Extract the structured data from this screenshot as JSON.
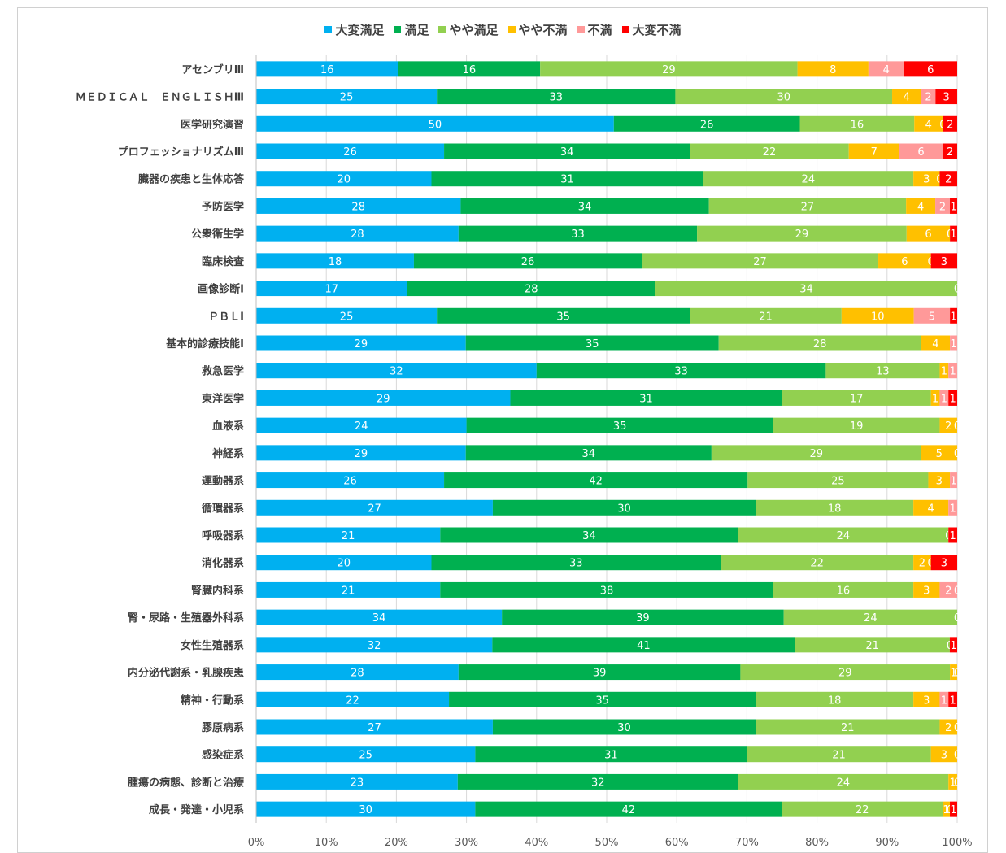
{
  "chart_data": {
    "type": "bar",
    "orientation": "horizontal",
    "stacked": "percent",
    "series_colors": [
      "#00b0f0",
      "#00b050",
      "#92d050",
      "#ffc000",
      "#ff9999",
      "#ff0000"
    ],
    "x_ticks": [
      "0%",
      "10%",
      "20%",
      "30%",
      "40%",
      "50%",
      "60%",
      "70%",
      "80%",
      "90%",
      "100%"
    ],
    "legend_position": "top",
    "grid": true,
    "series": [
      {
        "name": "大変満足",
        "values": [
          16,
          25,
          50,
          26,
          20,
          28,
          28,
          18,
          17,
          25,
          29,
          32,
          29,
          24,
          29,
          26,
          27,
          21,
          20,
          21,
          34,
          32,
          28,
          22,
          27,
          25,
          23,
          30
        ]
      },
      {
        "name": "満足",
        "values": [
          16,
          33,
          26,
          34,
          31,
          34,
          33,
          26,
          28,
          35,
          35,
          33,
          31,
          35,
          34,
          42,
          30,
          34,
          33,
          38,
          39,
          41,
          39,
          35,
          30,
          31,
          32,
          42
        ]
      },
      {
        "name": "やや満足",
        "values": [
          29,
          30,
          16,
          22,
          24,
          27,
          29,
          27,
          34,
          21,
          28,
          13,
          17,
          19,
          29,
          25,
          18,
          24,
          22,
          16,
          24,
          21,
          29,
          18,
          21,
          21,
          24,
          22
        ]
      },
      {
        "name": "やや不満",
        "values": [
          8,
          4,
          4,
          7,
          3,
          4,
          6,
          6,
          0,
          10,
          4,
          1,
          1,
          2,
          5,
          3,
          4,
          0,
          2,
          3,
          0,
          0,
          1,
          3,
          2,
          3,
          1,
          1
        ]
      },
      {
        "name": "不満",
        "values": [
          4,
          2,
          0,
          6,
          0,
          2,
          0,
          0,
          0,
          5,
          1,
          1,
          1,
          0,
          0,
          1,
          1,
          0,
          0,
          2,
          0,
          0,
          0,
          1,
          0,
          0,
          0,
          0
        ]
      },
      {
        "name": "大変不満",
        "values": [
          6,
          3,
          2,
          2,
          2,
          1,
          1,
          3,
          0,
          1,
          0,
          0,
          1,
          0,
          0,
          0,
          0,
          1,
          3,
          0,
          0,
          1,
          0,
          1,
          0,
          0,
          0,
          1
        ]
      }
    ],
    "categories": [
      "アセンブリⅢ",
      "ＭＥＤＩＣＡＬ　ＥＮＧＬＩＳＨⅢ",
      "医学研究演習",
      "プロフェッショナリズムⅢ",
      "臓器の疾患と生体応答",
      "予防医学",
      "公衆衛生学",
      "臨床検査",
      "画像診断Ⅰ",
      "ＰＢＬⅠ",
      "基本的診療技能Ⅰ",
      "救急医学",
      "東洋医学",
      "血液系",
      "神経系",
      "運動器系",
      "循環器系",
      "呼吸器系",
      "消化器系",
      "腎臓内科系",
      "腎・尿路・生殖器外科系",
      "女性生殖器系",
      "内分泌代謝系・乳腺疾患",
      "精神・行動系",
      "膠原病系",
      "感染症系",
      "腫瘍の病態、診断と治療",
      "成長・発達・小児系"
    ],
    "data_labels": {
      "shown": [
        [
          "16",
          "16",
          "29",
          "8",
          "4",
          "6"
        ],
        [
          "25",
          "33",
          "30",
          "4",
          "2",
          "3"
        ],
        [
          "50",
          "26",
          "16",
          "4",
          "0",
          "2"
        ],
        [
          "26",
          "34",
          "22",
          "7",
          "6",
          "2"
        ],
        [
          "20",
          "31",
          "24",
          "3",
          "0",
          "2"
        ],
        [
          "28",
          "34",
          "27",
          "4",
          "2",
          "1"
        ],
        [
          "28",
          "33",
          "29",
          "6",
          "0",
          "1"
        ],
        [
          "18",
          "26",
          "27",
          "6",
          "0",
          "3"
        ],
        [
          "17",
          "28",
          "34",
          "0",
          "",
          ""
        ],
        [
          "25",
          "35",
          "21",
          "10",
          "5",
          "1"
        ],
        [
          "29",
          "35",
          "28",
          "4",
          "1",
          ""
        ],
        [
          "32",
          "33",
          "13",
          "1",
          "1",
          ""
        ],
        [
          "29",
          "31",
          "17",
          "1",
          "1",
          "1"
        ],
        [
          "24",
          "35",
          "19",
          "2",
          "0",
          ""
        ],
        [
          "29",
          "34",
          "29",
          "5",
          "0",
          ""
        ],
        [
          "26",
          "42",
          "25",
          "3",
          "1",
          ""
        ],
        [
          "27",
          "30",
          "18",
          "4",
          "1",
          ""
        ],
        [
          "21",
          "34",
          "24",
          "0",
          "",
          "1"
        ],
        [
          "20",
          "33",
          "22",
          "2",
          "0",
          "3"
        ],
        [
          "21",
          "38",
          "16",
          "3",
          "2",
          "0"
        ],
        [
          "34",
          "39",
          "24",
          "0",
          "",
          ""
        ],
        [
          "32",
          "41",
          "21",
          "0",
          "",
          "1"
        ],
        [
          "28",
          "39",
          "29",
          "1",
          "0",
          ""
        ],
        [
          "22",
          "35",
          "18",
          "3",
          "1",
          "1"
        ],
        [
          "27",
          "30",
          "21",
          "2",
          "0",
          ""
        ],
        [
          "25",
          "31",
          "21",
          "3",
          "0",
          ""
        ],
        [
          "23",
          "32",
          "24",
          "1",
          "0",
          ""
        ],
        [
          "30",
          "42",
          "22",
          "1",
          "0",
          "1"
        ]
      ]
    }
  }
}
